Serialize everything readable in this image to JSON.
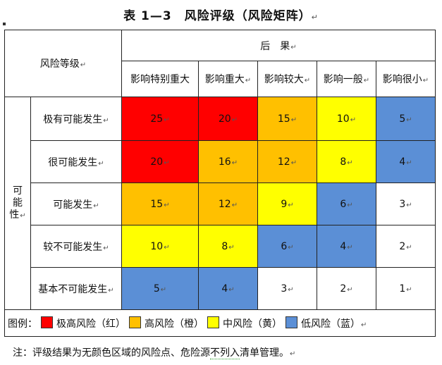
{
  "title": "表 1—3　风险评级（风险矩阵）",
  "para_mark": "↵",
  "header": {
    "risk_level": "风险等级",
    "consequence": "后　果",
    "columns": [
      "影响特别重大",
      "影响重大",
      "影响较大",
      "影响一般",
      "影响很小"
    ]
  },
  "possibility_label": [
    "可",
    "能",
    "性"
  ],
  "rows": [
    {
      "label": "极有可能发生",
      "values": [
        "25",
        "20",
        "15",
        "10",
        "5"
      ]
    },
    {
      "label": "很可能发生",
      "values": [
        "20",
        "16",
        "12",
        "8",
        "4"
      ]
    },
    {
      "label": "可能发生",
      "values": [
        "15",
        "12",
        "9",
        "6",
        "3"
      ]
    },
    {
      "label": "较不可能发生",
      "values": [
        "10",
        "8",
        "6",
        "4",
        "2"
      ]
    },
    {
      "label": "基本不可能发生",
      "values": [
        "5",
        "4",
        "3",
        "2",
        "1"
      ]
    }
  ],
  "cell_levels": [
    [
      "extreme",
      "extreme",
      "high",
      "medium",
      "low"
    ],
    [
      "extreme",
      "high",
      "high",
      "medium",
      "low"
    ],
    [
      "high",
      "high",
      "medium",
      "low",
      "none"
    ],
    [
      "medium",
      "medium",
      "low",
      "low",
      "none"
    ],
    [
      "low",
      "low",
      "none",
      "none",
      "none"
    ]
  ],
  "colors": {
    "extreme": "#ff0000",
    "high": "#ffc000",
    "medium": "#ffff00",
    "low": "#5b8fd6",
    "none": "#ffffff"
  },
  "legend": {
    "prefix": "图例：",
    "items": [
      {
        "level": "extreme",
        "label": "极高风险（红）"
      },
      {
        "level": "high",
        "label": "高风险（橙）"
      },
      {
        "level": "medium",
        "label": "中风险（黄）"
      },
      {
        "level": "low",
        "label": "低风险（蓝）"
      }
    ]
  },
  "note": {
    "before": "注：评级结果为无颜色区域的风险点、危险源",
    "underlined": "不列入",
    "after": "清单管理。"
  }
}
